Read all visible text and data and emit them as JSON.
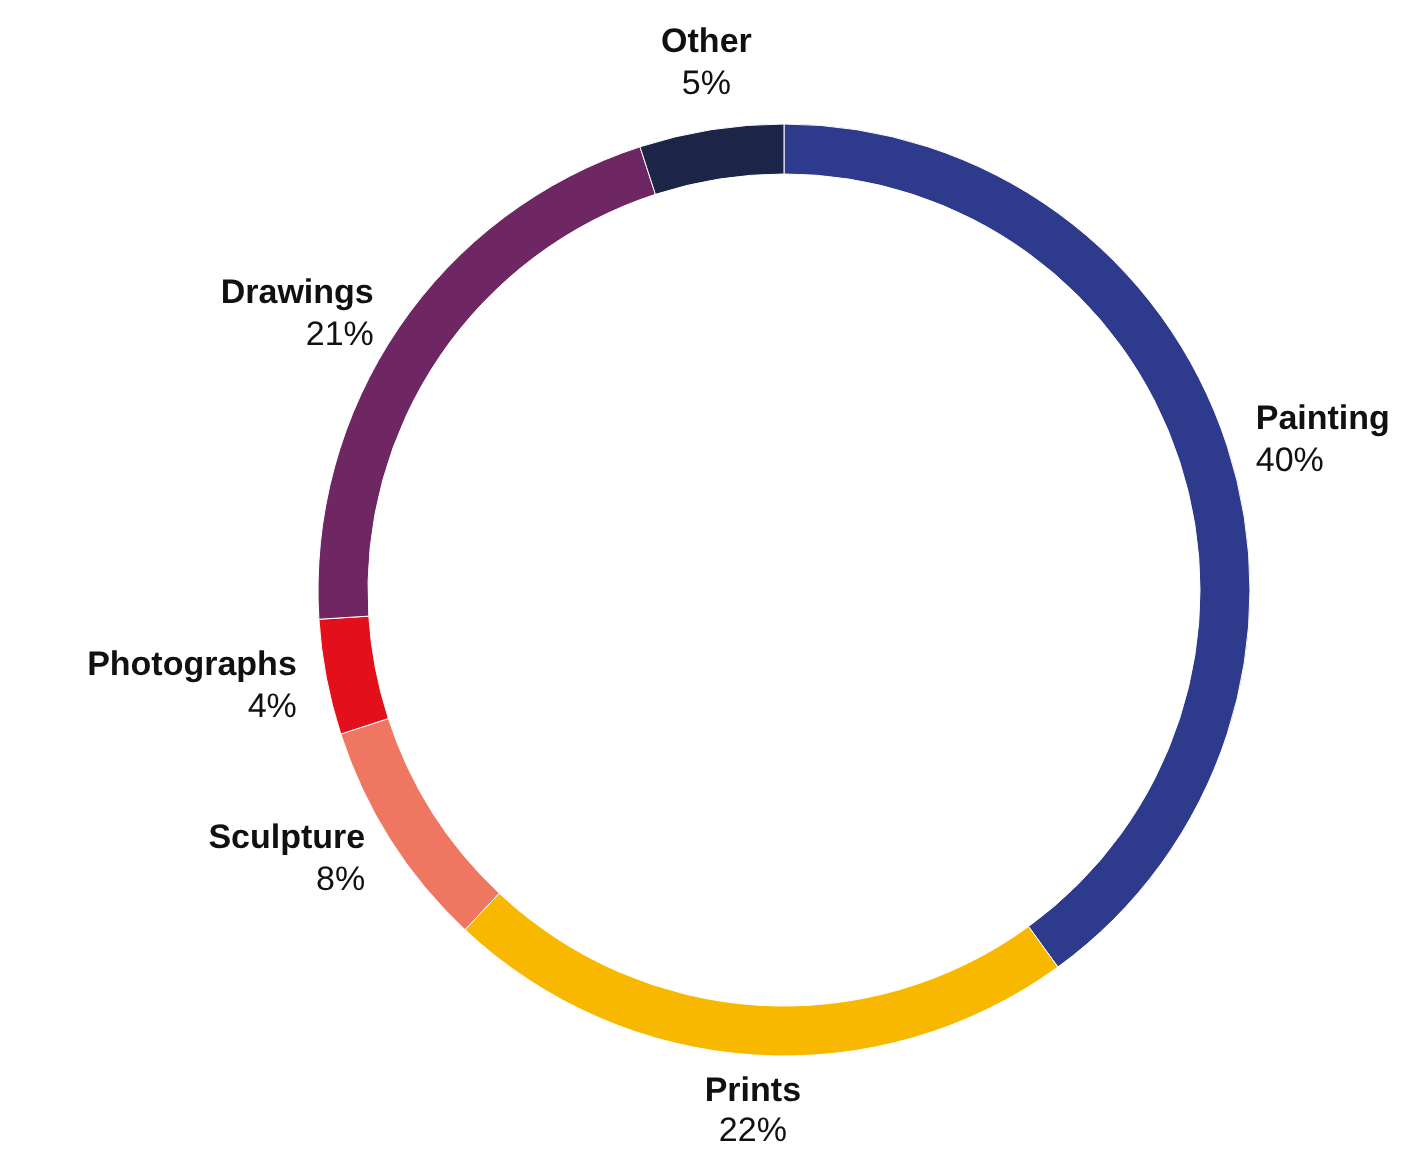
{
  "chart_data": {
    "type": "donut",
    "categories": [
      "Painting",
      "Prints",
      "Sculpture",
      "Photographs",
      "Drawings",
      "Other"
    ],
    "values": [
      40,
      22,
      8,
      4,
      21,
      5
    ],
    "value_labels": [
      "40%",
      "22%",
      "8%",
      "4%",
      "21%",
      "5%"
    ],
    "colors": [
      "#2e3a8c",
      "#f9b800",
      "#ef7660",
      "#e30f1b",
      "#6e2762",
      "#1c2447"
    ]
  }
}
